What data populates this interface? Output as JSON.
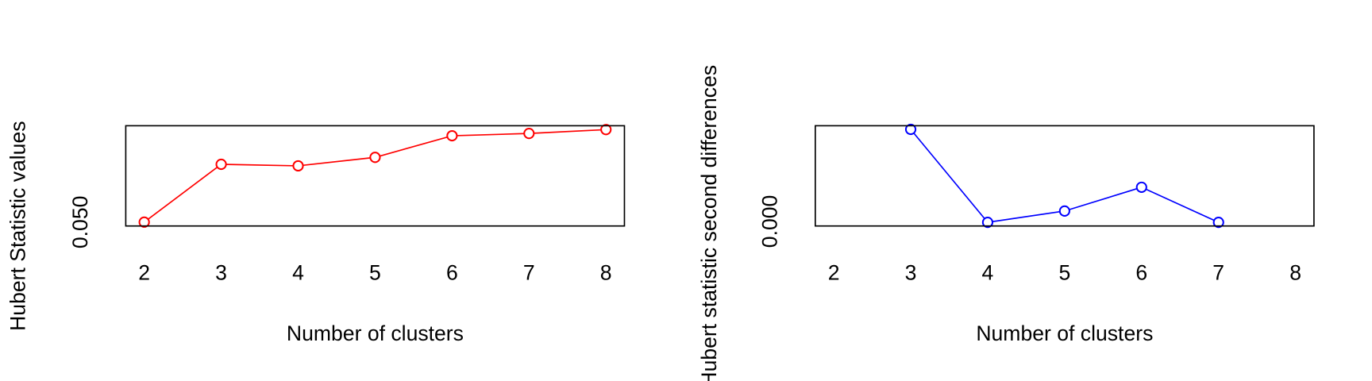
{
  "chart_data": [
    {
      "type": "line",
      "xlabel": "Number of clusters",
      "ylabel": "Hubert Statistic values",
      "x": [
        2,
        3,
        4,
        5,
        6,
        7,
        8
      ],
      "series": [
        {
          "name": "Hubert Statistic values",
          "color": "#ff0000",
          "values": [
            0.05,
            0.05075,
            0.05073,
            0.05084,
            0.05112,
            0.05115,
            0.0512
          ]
        }
      ],
      "xlim": [
        1.76,
        8.24
      ],
      "xticks": [
        2,
        3,
        4,
        5,
        6,
        7,
        8
      ],
      "ylim": [
        0.04995,
        0.05125
      ],
      "yticks": [
        {
          "value": 0.05,
          "label": "0.050"
        }
      ]
    },
    {
      "type": "line",
      "xlabel": "Number of clusters",
      "ylabel": "Hubert statistic second differences",
      "x": [
        2,
        3,
        4,
        5,
        6,
        7,
        8
      ],
      "series": [
        {
          "name": "Hubert statistic second differences",
          "color": "#0000ff",
          "values": [
            null,
            0.00101,
            -1e-05,
            0.000114,
            0.000375,
            -1e-05,
            null
          ]
        }
      ],
      "xlim": [
        1.76,
        8.24
      ],
      "xticks": [
        2,
        3,
        4,
        5,
        6,
        7,
        8
      ],
      "ylim": [
        -5e-05,
        0.00105
      ],
      "yticks": [
        {
          "value": 0,
          "label": "0.000"
        }
      ]
    }
  ]
}
